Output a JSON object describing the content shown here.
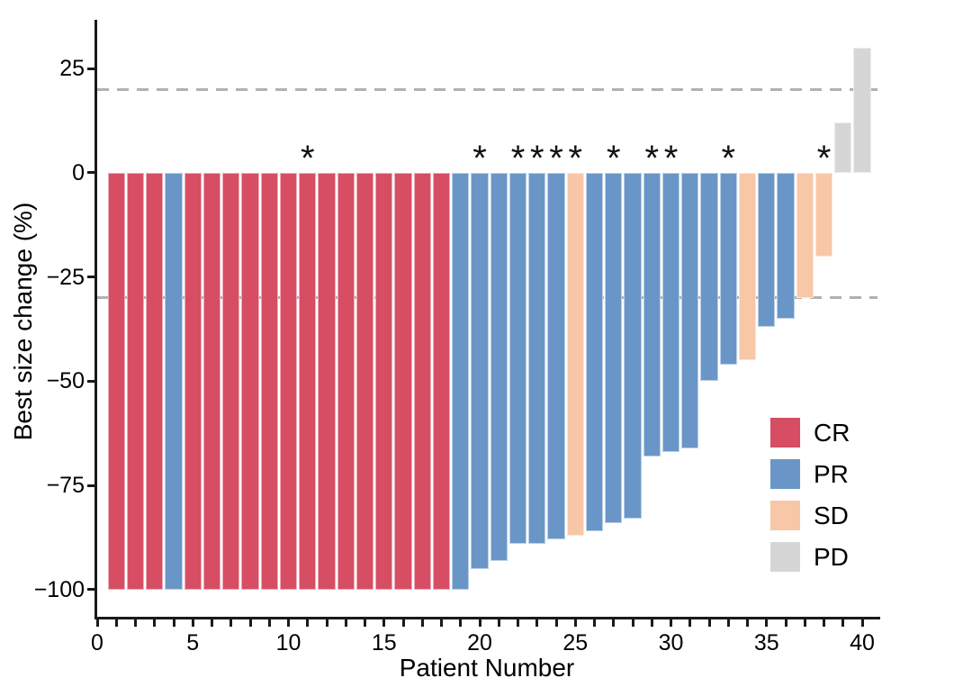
{
  "chart_data": {
    "type": "bar",
    "title": "",
    "xlabel": "Patient Number",
    "ylabel": "Best size change (%)",
    "xlim": [
      0,
      40.8
    ],
    "ylim": [
      -106.5,
      36.5
    ],
    "bar_width": 0.9,
    "grid": false,
    "legend_position": "inside-right",
    "annotation_symbol": "*",
    "axis_color": "#1a1a1a",
    "reference_lines": [
      {
        "y": 20,
        "style": "dashed",
        "color": "#b1b1b1"
      },
      {
        "y": -30,
        "style": "dashed",
        "color": "#b1b1b1"
      }
    ],
    "yticks": [
      {
        "v": 25,
        "label": "25"
      },
      {
        "v": 0,
        "label": "0"
      },
      {
        "v": -25,
        "label": "−25"
      },
      {
        "v": -50,
        "label": "−50"
      },
      {
        "v": -75,
        "label": "−75"
      },
      {
        "v": -100,
        "label": "−100"
      }
    ],
    "xticks_labeled": [
      {
        "v": 0,
        "label": "0"
      },
      {
        "v": 5,
        "label": "5"
      },
      {
        "v": 10,
        "label": "10"
      },
      {
        "v": 15,
        "label": "15"
      },
      {
        "v": 20,
        "label": "20"
      },
      {
        "v": 25,
        "label": "25"
      },
      {
        "v": 30,
        "label": "30"
      },
      {
        "v": 35,
        "label": "35"
      },
      {
        "v": 40,
        "label": "40"
      }
    ],
    "xticks_minor": {
      "from": 0,
      "to": 40,
      "step": 1
    },
    "colors": {
      "CR": "#d64d64",
      "PR": "#6a96c7",
      "SD": "#f8c7a7",
      "PD": "#d6d6d6"
    },
    "legend": [
      {
        "label": "CR"
      },
      {
        "label": "PR"
      },
      {
        "label": "SD"
      },
      {
        "label": "PD"
      }
    ],
    "bars": [
      {
        "patient": 1,
        "value": -100,
        "response": "CR",
        "star": false
      },
      {
        "patient": 2,
        "value": -100,
        "response": "CR",
        "star": false
      },
      {
        "patient": 3,
        "value": -100,
        "response": "CR",
        "star": false
      },
      {
        "patient": 4,
        "value": -100,
        "response": "PR",
        "star": false
      },
      {
        "patient": 5,
        "value": -100,
        "response": "CR",
        "star": false
      },
      {
        "patient": 6,
        "value": -100,
        "response": "CR",
        "star": false
      },
      {
        "patient": 7,
        "value": -100,
        "response": "CR",
        "star": false
      },
      {
        "patient": 8,
        "value": -100,
        "response": "CR",
        "star": false
      },
      {
        "patient": 9,
        "value": -100,
        "response": "CR",
        "star": false
      },
      {
        "patient": 10,
        "value": -100,
        "response": "CR",
        "star": false
      },
      {
        "patient": 11,
        "value": -100,
        "response": "CR",
        "star": true
      },
      {
        "patient": 12,
        "value": -100,
        "response": "CR",
        "star": false
      },
      {
        "patient": 13,
        "value": -100,
        "response": "CR",
        "star": false
      },
      {
        "patient": 14,
        "value": -100,
        "response": "CR",
        "star": false
      },
      {
        "patient": 15,
        "value": -100,
        "response": "CR",
        "star": false
      },
      {
        "patient": 16,
        "value": -100,
        "response": "CR",
        "star": false
      },
      {
        "patient": 17,
        "value": -100,
        "response": "CR",
        "star": false
      },
      {
        "patient": 18,
        "value": -100,
        "response": "CR",
        "star": false
      },
      {
        "patient": 19,
        "value": -100,
        "response": "PR",
        "star": false
      },
      {
        "patient": 20,
        "value": -95,
        "response": "PR",
        "star": true
      },
      {
        "patient": 21,
        "value": -93,
        "response": "PR",
        "star": false
      },
      {
        "patient": 22,
        "value": -89,
        "response": "PR",
        "star": true
      },
      {
        "patient": 23,
        "value": -89,
        "response": "PR",
        "star": true
      },
      {
        "patient": 24,
        "value": -88,
        "response": "PR",
        "star": true
      },
      {
        "patient": 25,
        "value": -87,
        "response": "SD",
        "star": true
      },
      {
        "patient": 26,
        "value": -86,
        "response": "PR",
        "star": false
      },
      {
        "patient": 27,
        "value": -84,
        "response": "PR",
        "star": true
      },
      {
        "patient": 28,
        "value": -83,
        "response": "PR",
        "star": false
      },
      {
        "patient": 29,
        "value": -68,
        "response": "PR",
        "star": true
      },
      {
        "patient": 30,
        "value": -67,
        "response": "PR",
        "star": true
      },
      {
        "patient": 31,
        "value": -66,
        "response": "PR",
        "star": false
      },
      {
        "patient": 32,
        "value": -50,
        "response": "PR",
        "star": false
      },
      {
        "patient": 33,
        "value": -46,
        "response": "PR",
        "star": true
      },
      {
        "patient": 34,
        "value": -45,
        "response": "SD",
        "star": false
      },
      {
        "patient": 35,
        "value": -37,
        "response": "PR",
        "star": false
      },
      {
        "patient": 36,
        "value": -35,
        "response": "PR",
        "star": false
      },
      {
        "patient": 37,
        "value": -30,
        "response": "SD",
        "star": false
      },
      {
        "patient": 38,
        "value": -20,
        "response": "SD",
        "star": true
      },
      {
        "patient": 39,
        "value": 12,
        "response": "PD",
        "star": false
      },
      {
        "patient": 40,
        "value": 30,
        "response": "PD",
        "star": false
      }
    ]
  }
}
